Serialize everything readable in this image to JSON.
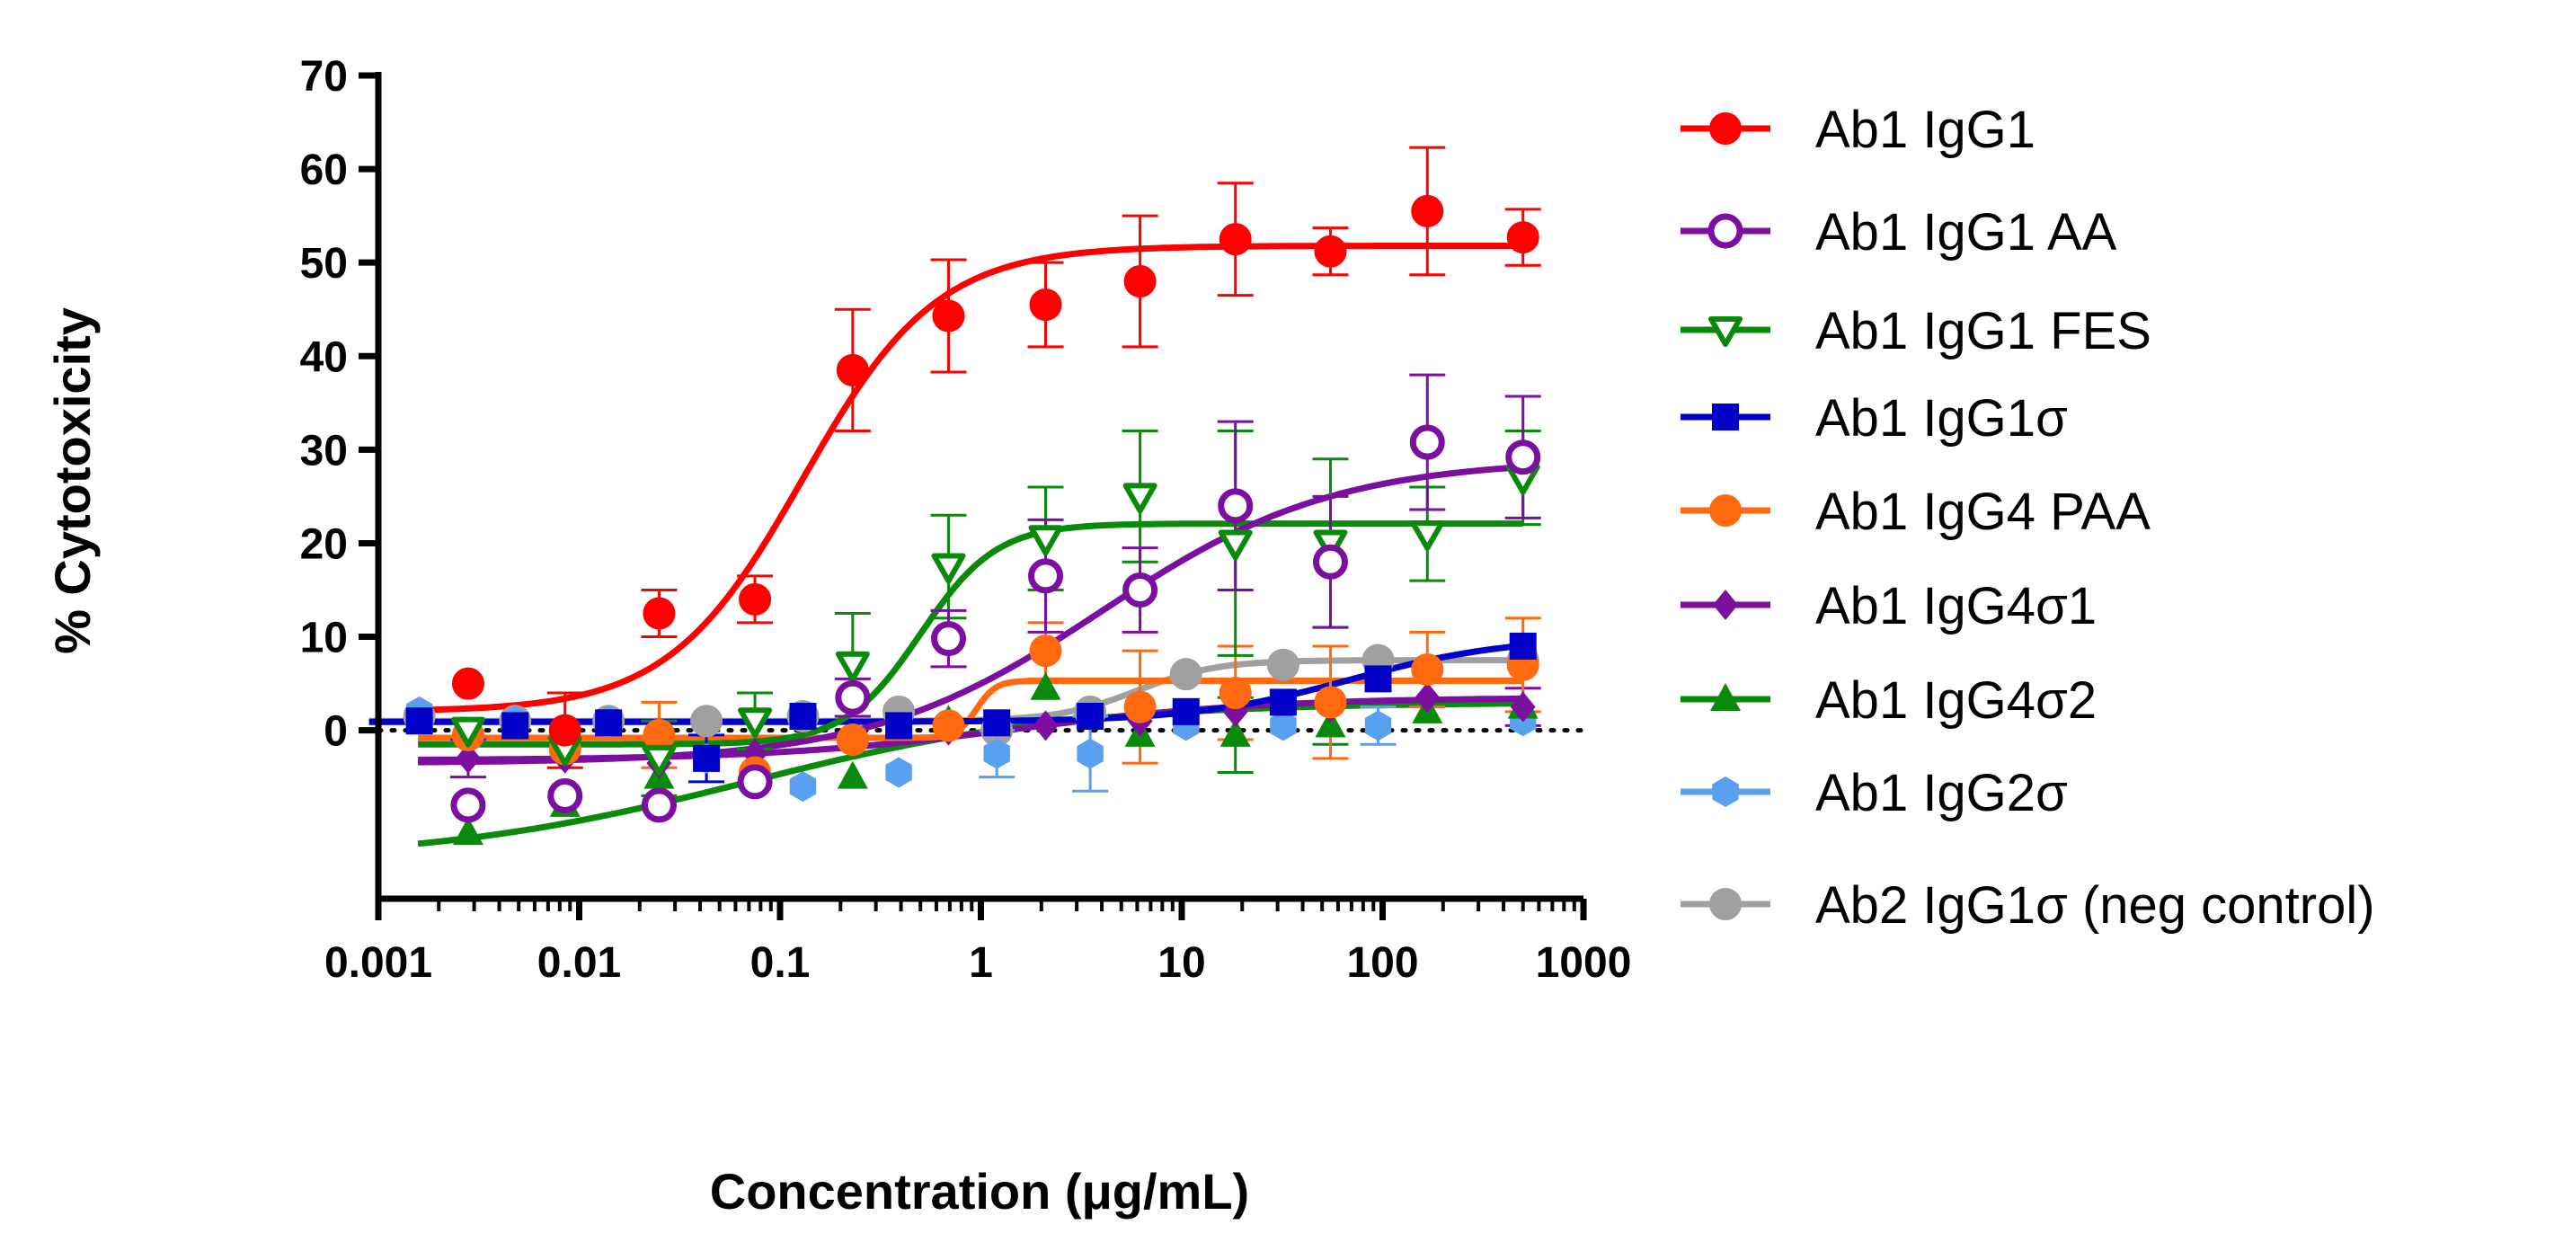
{
  "chart_data": {
    "type": "scatter",
    "title": "",
    "xlabel": "Concentration  (μg/mL)",
    "ylabel": "% Cytotoxicity",
    "xscale": "log",
    "xlim": [
      0.001,
      1000
    ],
    "ylim": [
      -18,
      70
    ],
    "x_ticks": [
      {
        "value": 0.001,
        "label": "0.001"
      },
      {
        "value": 0.01,
        "label": "0.01"
      },
      {
        "value": 0.1,
        "label": "0.1"
      },
      {
        "value": 1,
        "label": "1"
      },
      {
        "value": 10,
        "label": "10"
      },
      {
        "value": 100,
        "label": "100"
      },
      {
        "value": 1000,
        "label": "1000"
      }
    ],
    "y_ticks": [
      {
        "value": 0,
        "label": "0"
      },
      {
        "value": 10,
        "label": "10"
      },
      {
        "value": 20,
        "label": "20"
      },
      {
        "value": 30,
        "label": "30"
      },
      {
        "value": 40,
        "label": "40"
      },
      {
        "value": 50,
        "label": "50"
      },
      {
        "value": 60,
        "label": "60"
      },
      {
        "value": 70,
        "label": "70"
      }
    ],
    "zero_line": "dotted",
    "legend_position": "right",
    "series": [
      {
        "name": "Ab1 IgG1",
        "color": "#ff0000",
        "marker": "circle-filled",
        "x": [
          0.0028,
          0.0085,
          0.025,
          0.075,
          0.23,
          0.69,
          2.1,
          6.2,
          18.5,
          55,
          167,
          500
        ],
        "y": [
          5,
          0,
          12.5,
          14,
          38.5,
          44.3,
          45.5,
          48,
          52.5,
          51.2,
          55.5,
          52.7
        ],
        "err": [
          0,
          4,
          2.5,
          2.5,
          6.5,
          6,
          4.5,
          7,
          6,
          2.5,
          6.8,
          3
        ],
        "fit": {
          "bottom": 2,
          "top": 51.8,
          "ec50": 0.13,
          "hill": 1.3
        }
      },
      {
        "name": "Ab1 IgG1 AA",
        "color": "#7b0fa0",
        "marker": "circle-open",
        "x": [
          0.0028,
          0.0085,
          0.025,
          0.075,
          0.23,
          0.69,
          2.1,
          6.2,
          18.5,
          55,
          167,
          500
        ],
        "y": [
          -8,
          -7,
          -8,
          -5.5,
          3.5,
          9.8,
          16.5,
          15,
          24,
          18,
          30.8,
          29.2
        ],
        "err": [
          0,
          0,
          0,
          0,
          2,
          3,
          6,
          4.5,
          9,
          7,
          7.2,
          6.5
        ],
        "fit": {
          "bottom": -3.5,
          "top": 29,
          "ec50": 4,
          "hill": 0.75
        }
      },
      {
        "name": "Ab1 IgG1 FES",
        "color": "#0a8a0a",
        "marker": "triangle-down-open",
        "x": [
          0.0028,
          0.0085,
          0.025,
          0.075,
          0.23,
          0.69,
          2.1,
          6.2,
          18.5,
          55,
          167,
          500
        ],
        "y": [
          0,
          -2,
          -3,
          1,
          7,
          17.5,
          20.5,
          25,
          20,
          20,
          21,
          27
        ],
        "err": [
          0,
          0,
          4,
          3,
          5.5,
          5.5,
          5.5,
          7,
          12,
          9,
          5,
          5
        ],
        "fit": {
          "bottom": -1.5,
          "top": 22.1,
          "ec50": 0.5,
          "hill": 2.3
        }
      },
      {
        "name": "Ab1 IgG1σ",
        "color": "#0000c8",
        "marker": "square-filled",
        "x": [
          0.0016,
          0.0048,
          0.014,
          0.043,
          0.13,
          0.39,
          1.2,
          3.5,
          10.5,
          32,
          95,
          500
        ],
        "y": [
          1,
          0.5,
          0.8,
          -3,
          1.5,
          0.5,
          0.8,
          1.5,
          2,
          3,
          5.5,
          9
        ],
        "err": [
          0,
          0,
          0,
          2.5,
          0,
          0,
          0,
          0,
          0,
          0,
          0,
          0
        ],
        "fit": {
          "bottom": 0.9,
          "top": 10,
          "ec50": 70,
          "hill": 1.1
        }
      },
      {
        "name": "Ab1 IgG4 PAA",
        "color": "#ff6a10",
        "marker": "circle-filled",
        "x": [
          0.0028,
          0.0085,
          0.025,
          0.075,
          0.23,
          0.69,
          2.1,
          6.2,
          18.5,
          55,
          167,
          500
        ],
        "y": [
          -0.5,
          -2,
          -0.5,
          -4.5,
          -1,
          0.5,
          8.5,
          2.5,
          4,
          3,
          6.5,
          7
        ],
        "err": [
          0,
          0,
          3.5,
          0,
          0,
          0,
          3,
          6,
          5,
          6,
          4,
          5
        ],
        "fit": {
          "bottom": -0.8,
          "top": 5.3,
          "ec50": 0.95,
          "hill": 9
        }
      },
      {
        "name": "Ab1 IgG4σ1",
        "color": "#7b0fa0",
        "marker": "diamond-filled",
        "x": [
          0.0028,
          0.0085,
          0.025,
          0.075,
          0.23,
          0.69,
          2.1,
          6.2,
          18.5,
          55,
          167,
          500
        ],
        "y": [
          -3,
          -3,
          -3.5,
          -2.5,
          -1,
          0,
          0.5,
          1,
          2,
          2.5,
          3.5,
          2.5
        ],
        "err": [
          2,
          0,
          0,
          0,
          0,
          0,
          0,
          0,
          0,
          0,
          0,
          2
        ],
        "fit": {
          "bottom": -3.2,
          "top": 3.5,
          "ec50": 1.5,
          "hill": 0.7
        }
      },
      {
        "name": "Ab1 IgG4σ2",
        "color": "#0a8a0a",
        "marker": "triangle-up-filled",
        "x": [
          0.0028,
          0.0085,
          0.025,
          0.075,
          0.23,
          0.69,
          2.1,
          6.2,
          18.5,
          55,
          167,
          500
        ],
        "y": [
          -11,
          -8,
          -5,
          -5,
          -5,
          1,
          4.5,
          -0.5,
          -0.5,
          0.5,
          2,
          2.5
        ],
        "err": [
          0,
          0,
          0,
          0,
          0,
          0,
          0,
          0,
          4,
          2,
          0,
          0
        ],
        "fit": {
          "bottom": -14,
          "top": 3,
          "ec50": 0.07,
          "hill": 0.55
        }
      },
      {
        "name": "Ab1 IgG2σ",
        "color": "#5aa0f0",
        "marker": "hexagon-filled",
        "x": [
          0.0016,
          0.0048,
          0.014,
          0.043,
          0.13,
          0.39,
          1.2,
          3.5,
          10.5,
          32,
          95,
          500
        ],
        "y": [
          2,
          1,
          1,
          -3,
          -6,
          -4.5,
          -2.5,
          -2.5,
          0.5,
          0.5,
          0.5,
          1
        ],
        "err": [
          0,
          0,
          0,
          0,
          0,
          0,
          2.5,
          4,
          0,
          0,
          2,
          0
        ],
        "fit": null
      },
      {
        "name": "Ab2 IgG1σ (neg control)",
        "color": "#a0a0a0",
        "marker": "circle-filled",
        "x": [
          0.0016,
          0.0048,
          0.014,
          0.043,
          0.13,
          0.39,
          1.2,
          3.5,
          10.5,
          32,
          95,
          500
        ],
        "y": [
          1.5,
          1,
          1,
          1,
          1.5,
          2,
          0,
          2,
          6,
          7,
          7.5,
          7.5
        ],
        "err": [
          0,
          0,
          0,
          0,
          0,
          0,
          0,
          0,
          0,
          0,
          0,
          0
        ],
        "fit": {
          "bottom": 1,
          "top": 7.5,
          "ec50": 6,
          "hill": 2.2
        }
      }
    ]
  }
}
